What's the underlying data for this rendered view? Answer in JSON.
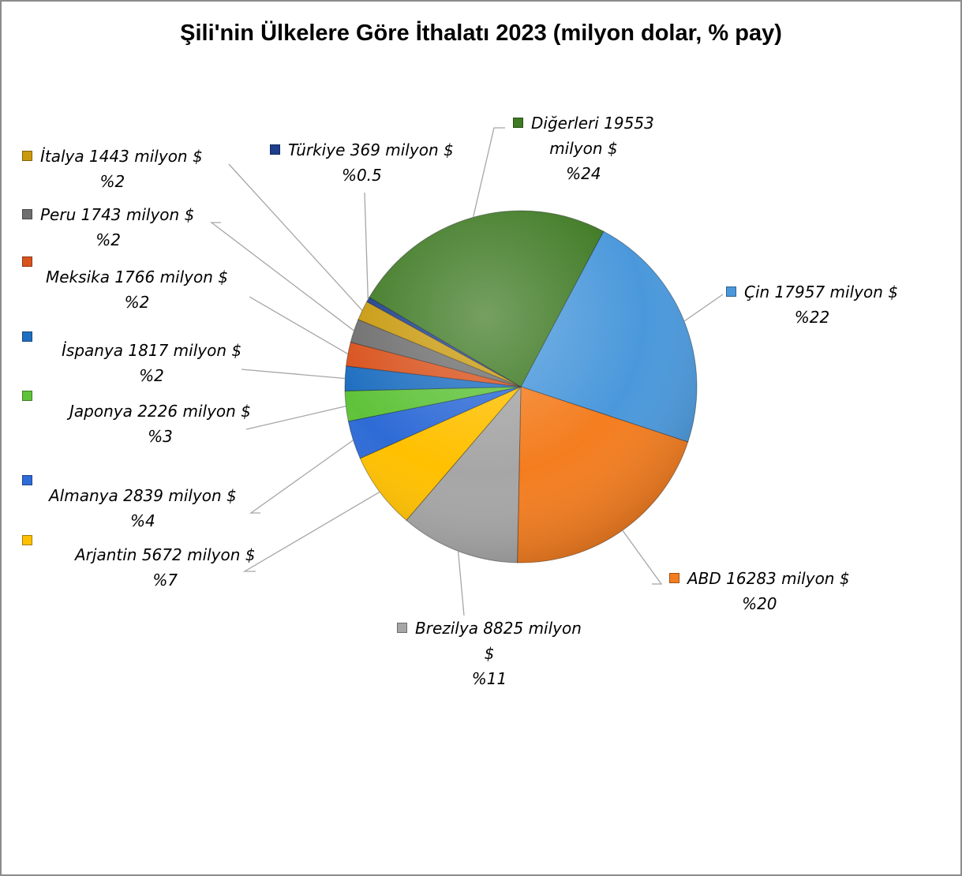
{
  "chart_data": {
    "type": "pie",
    "title": "Şili'nin Ülkelere Göre İthalatı 2023 (milyon dolar, % pay)",
    "unit_label": "milyon $",
    "slices": [
      {
        "name": "Çin",
        "value": 17957,
        "percent": "%22",
        "color": "#4a98db"
      },
      {
        "name": "ABD",
        "value": 16283,
        "percent": "%20",
        "color": "#f47d1f"
      },
      {
        "name": "Brezilya",
        "value": 8825,
        "percent": "%11",
        "color": "#a6a6a6"
      },
      {
        "name": "Arjantin",
        "value": 5672,
        "percent": "%7",
        "color": "#ffc000"
      },
      {
        "name": "Almanya",
        "value": 2839,
        "percent": "%4",
        "color": "#2e6bd6"
      },
      {
        "name": "Japonya",
        "value": 2226,
        "percent": "%3",
        "color": "#5fc33a"
      },
      {
        "name": "İspanya",
        "value": 1817,
        "percent": "%2",
        "color": "#1f6fc0"
      },
      {
        "name": "Meksika",
        "value": 1766,
        "percent": "%2",
        "color": "#d9531e"
      },
      {
        "name": "Peru",
        "value": 1743,
        "percent": "%2",
        "color": "#6f6f6f"
      },
      {
        "name": "İtalya",
        "value": 1443,
        "percent": "%2",
        "color": "#c99a0e"
      },
      {
        "name": "Türkiye",
        "value": 369,
        "percent": "%0.5",
        "color": "#1d3f8c"
      },
      {
        "name": "Diğerleri",
        "value": 19553,
        "percent": "%24",
        "color": "#3f7a24"
      }
    ],
    "labels": {
      "cin": {
        "line1": "Çin 17957 milyon $",
        "line2": "%22"
      },
      "abd": {
        "line1": "ABD 16283 milyon $",
        "line2": "%20"
      },
      "brezilya": {
        "line1": "Brezilya 8825 milyon",
        "line2": "$",
        "line3": "%11"
      },
      "arjantin": {
        "line1": "Arjantin 5672 milyon $",
        "line2": "%7"
      },
      "almanya": {
        "line1": "Almanya 2839 milyon $",
        "line2": "%4"
      },
      "japonya": {
        "line1": "Japonya 2226 milyon $",
        "line2": "%3"
      },
      "ispanya": {
        "line1": "İspanya 1817 milyon $",
        "line2": "%2"
      },
      "meksika": {
        "line1": "Meksika 1766 milyon $",
        "line2": "%2"
      },
      "peru": {
        "line1": "Peru 1743 milyon $",
        "line2": "%2"
      },
      "italya": {
        "line1": "İtalya 1443 milyon $",
        "line2": "%2"
      },
      "turkiye": {
        "line1": "Türkiye 369 milyon $",
        "line2": "%0.5"
      },
      "digerleri": {
        "line1": "Diğerleri 19553",
        "line2": "milyon $",
        "line3": "%24"
      }
    }
  }
}
